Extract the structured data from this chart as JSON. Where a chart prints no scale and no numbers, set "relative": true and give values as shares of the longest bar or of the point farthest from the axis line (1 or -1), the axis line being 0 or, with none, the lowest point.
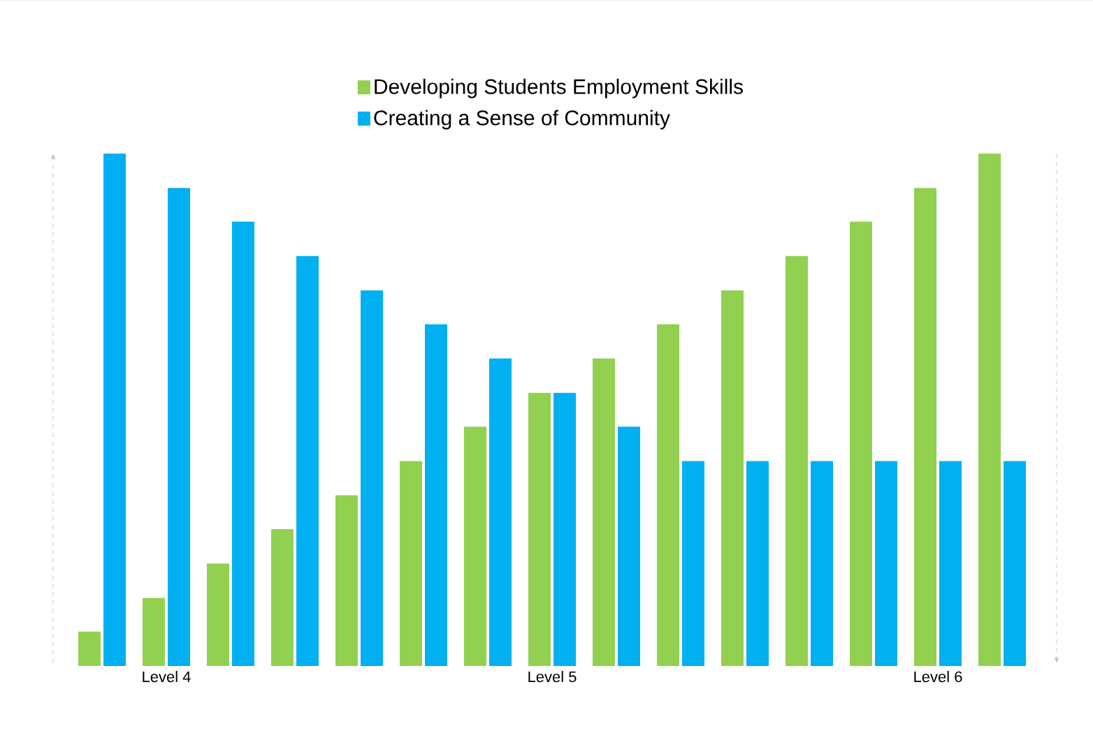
{
  "chart_data": {
    "type": "bar",
    "relative": true,
    "legend": "top",
    "categories": [
      null,
      "Level 4",
      null,
      null,
      null,
      null,
      null,
      "Level 5",
      null,
      null,
      null,
      null,
      null,
      "Level 6",
      null
    ],
    "series": [
      {
        "name": "Developing Students Employment Skills",
        "color": "#92d050",
        "values": [
          0.067,
          0.133,
          0.2,
          0.267,
          0.333,
          0.4,
          0.467,
          0.533,
          0.6,
          0.667,
          0.733,
          0.8,
          0.867,
          0.933,
          1
        ]
      },
      {
        "name": "Creating a Sense of Community",
        "color": "#00b0f0",
        "values": [
          1,
          0.933,
          0.867,
          0.8,
          0.733,
          0.667,
          0.6,
          0.533,
          0.467,
          0.4,
          0.4,
          0.4,
          0.4,
          0.4,
          0.4
        ]
      }
    ]
  }
}
